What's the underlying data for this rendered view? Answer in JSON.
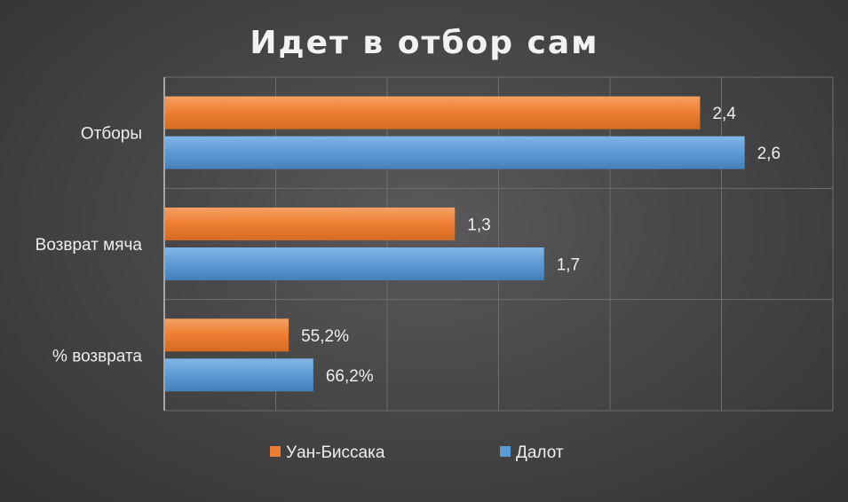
{
  "chart_data": {
    "type": "bar",
    "orientation": "horizontal",
    "title": "Идет в отбор сам",
    "categories": [
      "Отборы",
      "Возврат мяча",
      "% возврата"
    ],
    "series": [
      {
        "name": "Уан-Биссака",
        "color": "#ed7d31",
        "values": [
          2.4,
          1.3,
          55.2
        ],
        "labels": [
          "2,4",
          "1,3",
          "55,2%"
        ]
      },
      {
        "name": "Далот",
        "color": "#5b9bd5",
        "values": [
          2.6,
          1.7,
          66.2
        ],
        "labels": [
          "2,6",
          "1,7",
          "66,2%"
        ]
      }
    ],
    "grid": true,
    "legend_position": "bottom"
  }
}
